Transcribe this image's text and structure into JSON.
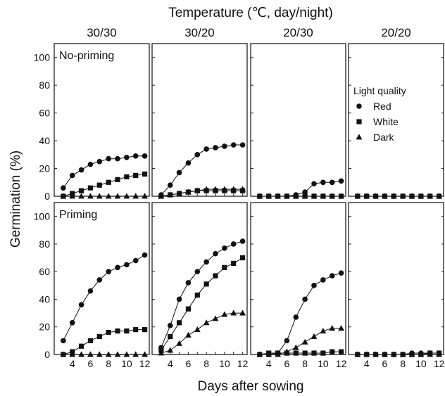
{
  "chart_data": {
    "type": "line",
    "title": "Temperature (℃, day/night)",
    "xlabel": "Days after sowing",
    "ylabel": "Germination (%)",
    "xlim": [
      2,
      12.5
    ],
    "ylim": [
      0,
      110
    ],
    "x_ticks": [
      4,
      6,
      8,
      10,
      12
    ],
    "y_ticks": [
      0,
      20,
      40,
      60,
      80,
      100
    ],
    "grid": false,
    "columns": [
      "30/30",
      "30/20",
      "20/30",
      "20/20"
    ],
    "rows": [
      "No-priming",
      "Priming"
    ],
    "legend": {
      "title": "Light quality",
      "placement": "top-right panel",
      "entries": [
        {
          "name": "Red",
          "marker": "circle"
        },
        {
          "name": "White",
          "marker": "square"
        },
        {
          "name": "Dark",
          "marker": "triangle"
        }
      ]
    },
    "x": [
      3,
      4,
      5,
      6,
      7,
      8,
      9,
      10,
      11,
      12
    ],
    "panels": [
      {
        "row": 0,
        "col": 0,
        "series": [
          {
            "name": "Red",
            "values": [
              6,
              15,
              19,
              23,
              25,
              27,
              27,
              28,
              29,
              29
            ]
          },
          {
            "name": "White",
            "values": [
              0,
              2,
              4,
              6,
              8,
              10,
              12,
              14,
              15,
              16
            ]
          },
          {
            "name": "Dark",
            "values": [
              0,
              0,
              0,
              0,
              0,
              0,
              0,
              0,
              0,
              0
            ]
          }
        ]
      },
      {
        "row": 0,
        "col": 1,
        "series": [
          {
            "name": "Red",
            "values": [
              1,
              8,
              17,
              24,
              30,
              34,
              35,
              36,
              37,
              37
            ]
          },
          {
            "name": "White",
            "values": [
              0,
              1,
              2,
              3,
              4,
              4,
              4,
              4,
              4,
              4
            ]
          },
          {
            "name": "Dark",
            "values": [
              0,
              1,
              2,
              3,
              4,
              5,
              5,
              5,
              5,
              5
            ]
          }
        ]
      },
      {
        "row": 0,
        "col": 2,
        "series": [
          {
            "name": "Red",
            "values": [
              0,
              0,
              0,
              0,
              1,
              3,
              9,
              10,
              10,
              11
            ]
          },
          {
            "name": "White",
            "values": [
              0,
              0,
              0,
              0,
              0,
              0,
              0,
              0,
              0,
              0
            ]
          },
          {
            "name": "Dark",
            "values": [
              0,
              0,
              0,
              0,
              0,
              0,
              0,
              0,
              0,
              0
            ]
          }
        ]
      },
      {
        "row": 0,
        "col": 3,
        "series": [
          {
            "name": "Red",
            "values": [
              0,
              0,
              0,
              0,
              0,
              0,
              0,
              0,
              0,
              0
            ]
          },
          {
            "name": "White",
            "values": [
              0,
              0,
              0,
              0,
              0,
              0,
              0,
              0,
              0,
              0
            ]
          },
          {
            "name": "Dark",
            "values": [
              0,
              0,
              0,
              0,
              0,
              0,
              0,
              0,
              0,
              0
            ]
          }
        ]
      },
      {
        "row": 1,
        "col": 0,
        "series": [
          {
            "name": "Red",
            "values": [
              10,
              23,
              36,
              46,
              54,
              60,
              63,
              65,
              68,
              72
            ]
          },
          {
            "name": "White",
            "values": [
              0,
              2,
              6,
              10,
              13,
              16,
              17,
              17,
              18,
              18
            ]
          },
          {
            "name": "Dark",
            "values": [
              0,
              0,
              0,
              0,
              0,
              0,
              0,
              0,
              0,
              0
            ]
          }
        ]
      },
      {
        "row": 1,
        "col": 1,
        "series": [
          {
            "name": "Red",
            "values": [
              5,
              21,
              40,
              52,
              60,
              67,
              73,
              77,
              80,
              82
            ]
          },
          {
            "name": "White",
            "values": [
              3,
              13,
              23,
              33,
              43,
              51,
              57,
              63,
              66,
              70
            ]
          },
          {
            "name": "Dark",
            "values": [
              1,
              3,
              8,
              14,
              18,
              23,
              26,
              29,
              30,
              30
            ]
          }
        ]
      },
      {
        "row": 1,
        "col": 2,
        "series": [
          {
            "name": "Red",
            "values": [
              0,
              0,
              1,
              10,
              27,
              40,
              50,
              54,
              57,
              59
            ]
          },
          {
            "name": "White",
            "values": [
              0,
              1,
              1,
              1,
              1,
              1,
              1,
              1,
              2,
              2
            ]
          },
          {
            "name": "Dark",
            "values": [
              0,
              0,
              0,
              2,
              5,
              9,
              13,
              17,
              19,
              19
            ]
          }
        ]
      },
      {
        "row": 1,
        "col": 3,
        "series": [
          {
            "name": "Red",
            "values": [
              0,
              0,
              0,
              0,
              0,
              0,
              1,
              1,
              1,
              1
            ]
          },
          {
            "name": "White",
            "values": [
              0,
              0,
              0,
              0,
              0,
              0,
              0,
              0,
              1,
              1
            ]
          },
          {
            "name": "Dark",
            "values": [
              0,
              0,
              0,
              0,
              0,
              0,
              0,
              0,
              0,
              0
            ]
          }
        ]
      }
    ]
  }
}
